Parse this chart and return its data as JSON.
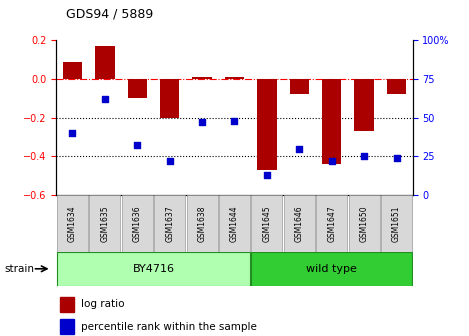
{
  "title": "GDS94 / 5889",
  "samples": [
    "GSM1634",
    "GSM1635",
    "GSM1636",
    "GSM1637",
    "GSM1638",
    "GSM1644",
    "GSM1645",
    "GSM1646",
    "GSM1647",
    "GSM1650",
    "GSM1651"
  ],
  "log_ratio": [
    0.09,
    0.17,
    -0.1,
    -0.2,
    0.01,
    0.01,
    -0.47,
    -0.08,
    -0.44,
    -0.27,
    -0.08
  ],
  "percentile_rank": [
    40,
    62,
    32,
    22,
    47,
    48,
    13,
    30,
    22,
    25,
    24
  ],
  "groups": [
    {
      "label": "BY4716",
      "start": 0,
      "end": 5,
      "color": "#90ee90"
    },
    {
      "label": "wild type",
      "start": 6,
      "end": 10,
      "color": "#32cd32"
    }
  ],
  "bar_color": "#aa0000",
  "dot_color": "#0000cc",
  "ylim_left": [
    -0.6,
    0.2
  ],
  "ylim_right": [
    0,
    100
  ],
  "yticks_left": [
    -0.6,
    -0.4,
    -0.2,
    0.0,
    0.2
  ],
  "yticks_right": [
    0,
    25,
    50,
    75,
    100
  ],
  "hline_y": 0.0,
  "dotted_lines": [
    -0.2,
    -0.4
  ],
  "legend_items": [
    {
      "label": "log ratio",
      "color": "#aa0000"
    },
    {
      "label": "percentile rank within the sample",
      "color": "#0000cc"
    }
  ],
  "strain_label": "strain",
  "figsize": [
    4.69,
    3.36
  ],
  "dpi": 100
}
